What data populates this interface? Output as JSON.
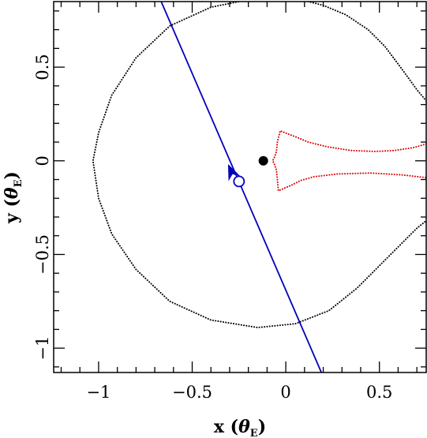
{
  "chart_data": {
    "type": "scatter",
    "title": "",
    "xlabel": {
      "text": "x",
      "unit_open": "(",
      "unit_symbol": "θ",
      "unit_sub": "E",
      "unit_close": ")"
    },
    "ylabel": {
      "text": "y",
      "unit_open": "(",
      "unit_symbol": "θ",
      "unit_sub": "E",
      "unit_close": ")"
    },
    "xlim": [
      -1.24,
      0.75
    ],
    "ylim": [
      -1.13,
      0.85
    ],
    "grid": false,
    "legend": "none",
    "x_ticks": [
      {
        "value": -1,
        "label": "−1"
      },
      {
        "value": -0.5,
        "label": "−0.5"
      },
      {
        "value": 0,
        "label": "0"
      },
      {
        "value": 0.5,
        "label": "0.5"
      }
    ],
    "y_ticks": [
      {
        "value": -1,
        "label": "−1"
      },
      {
        "value": -0.5,
        "label": "−0.5"
      },
      {
        "value": 0,
        "label": "0"
      },
      {
        "value": 0.5,
        "label": "0.5"
      }
    ],
    "x_minor_step": 0.1,
    "y_minor_step": 0.1,
    "series": [
      {
        "role": "critical-curve",
        "style": "dotted",
        "color": "#000000",
        "segments": [
          [
            [
              0.75,
              0.32
            ],
            [
              0.7,
              0.38
            ],
            [
              0.62,
              0.49
            ],
            [
              0.53,
              0.61
            ],
            [
              0.44,
              0.7
            ],
            [
              0.32,
              0.78
            ],
            [
              0.2,
              0.83
            ],
            [
              0.08,
              0.86
            ],
            [
              -0.05,
              0.87
            ],
            [
              -0.2,
              0.86
            ],
            [
              -0.4,
              0.82
            ],
            [
              -0.62,
              0.72
            ],
            [
              -0.8,
              0.55
            ],
            [
              -0.93,
              0.35
            ],
            [
              -1.0,
              0.15
            ],
            [
              -1.03,
              0.0
            ],
            [
              -1.0,
              -0.2
            ],
            [
              -0.93,
              -0.39
            ],
            [
              -0.8,
              -0.58
            ],
            [
              -0.62,
              -0.75
            ],
            [
              -0.4,
              -0.85
            ],
            [
              -0.15,
              -0.89
            ],
            [
              0.05,
              -0.87
            ],
            [
              0.23,
              -0.8
            ],
            [
              0.38,
              -0.68
            ],
            [
              0.5,
              -0.56
            ],
            [
              0.62,
              -0.44
            ],
            [
              0.7,
              -0.36
            ],
            [
              0.75,
              -0.32
            ]
          ]
        ]
      },
      {
        "role": "caustic",
        "style": "dotted",
        "color": "#dd0000",
        "segments": [
          [
            [
              0.75,
              0.09
            ],
            [
              0.68,
              0.07
            ],
            [
              0.58,
              0.055
            ],
            [
              0.48,
              0.05
            ],
            [
              0.35,
              0.055
            ],
            [
              0.22,
              0.075
            ],
            [
              0.12,
              0.1
            ],
            [
              0.06,
              0.125
            ],
            [
              -0.03,
              0.16
            ],
            [
              -0.045,
              0.1
            ],
            [
              -0.05,
              0.05
            ],
            [
              -0.06,
              0.02
            ],
            [
              -0.07,
              0.0
            ],
            [
              -0.06,
              -0.02
            ],
            [
              -0.05,
              -0.05
            ],
            [
              -0.045,
              -0.1
            ],
            [
              -0.04,
              -0.16
            ],
            [
              0.03,
              -0.13
            ],
            [
              0.08,
              -0.105
            ],
            [
              0.15,
              -0.085
            ],
            [
              0.28,
              -0.07
            ],
            [
              0.45,
              -0.065
            ],
            [
              0.62,
              -0.075
            ],
            [
              0.75,
              -0.09
            ]
          ]
        ]
      },
      {
        "role": "source-trajectory",
        "style": "solid",
        "color": "#0000bb",
        "segments": [
          [
            [
              -0.67,
              0.86
            ],
            [
              0.19,
              -1.13
            ]
          ]
        ]
      }
    ],
    "markers": [
      {
        "role": "lens",
        "x": -0.12,
        "y": 0.0,
        "shape": "filled-circle",
        "color": "#000000"
      },
      {
        "role": "source",
        "x": -0.25,
        "y": -0.11,
        "shape": "open-circle",
        "color": "#0000bb"
      },
      {
        "role": "direction",
        "x": -0.29,
        "y": -0.06,
        "shape": "arrowhead",
        "color": "#0000bb",
        "dir": [
          -0.4,
          0.92
        ]
      }
    ]
  }
}
